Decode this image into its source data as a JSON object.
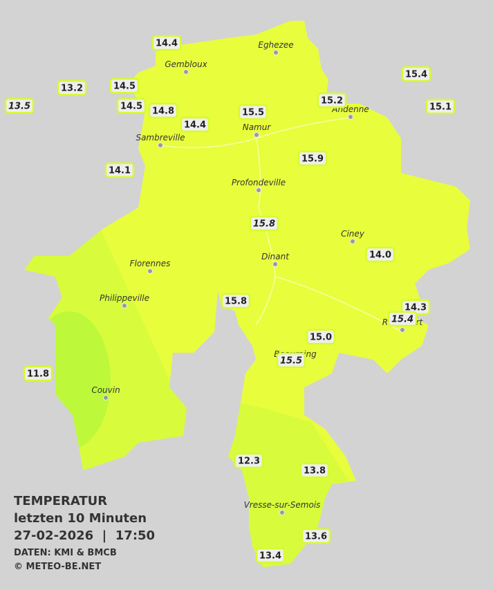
{
  "legend": {
    "title": "TEMPERATUR",
    "subtitle": "letzten 10 Minuten",
    "datetime": "27-02-2026  |  17:50",
    "source": "DATEN: KMI & BMCB",
    "copyright": "© METEO-BE.NET"
  },
  "cities": [
    "Eghezee",
    "Gembloux",
    "Andenne",
    "Namur",
    "Sambreville",
    "Profondeville",
    "Ciney",
    "Dinant",
    "Florennes",
    "Philippeville",
    "Beauraing",
    "Rochefort",
    "Couvin",
    "Vresse-sur-Semois"
  ],
  "stations": [
    {
      "label": "14.4"
    },
    {
      "label": "13.2"
    },
    {
      "label": "14.5"
    },
    {
      "label": "13.5",
      "italic": true
    },
    {
      "label": "14.5"
    },
    {
      "label": "14.8"
    },
    {
      "label": "14.4"
    },
    {
      "label": "15.5"
    },
    {
      "label": "15.2"
    },
    {
      "label": "15.4"
    },
    {
      "label": "15.1"
    },
    {
      "label": "14.1"
    },
    {
      "label": "15.9"
    },
    {
      "label": "15.8",
      "italic": true
    },
    {
      "label": "14.0"
    },
    {
      "label": "15.8"
    },
    {
      "label": "14.3"
    },
    {
      "label": "15.4",
      "italic": true
    },
    {
      "label": "15.0"
    },
    {
      "label": "15.5",
      "italic": true
    },
    {
      "label": "11.8"
    },
    {
      "label": "12.3"
    },
    {
      "label": "13.8"
    },
    {
      "label": "13.6"
    },
    {
      "label": "13.4"
    }
  ]
}
